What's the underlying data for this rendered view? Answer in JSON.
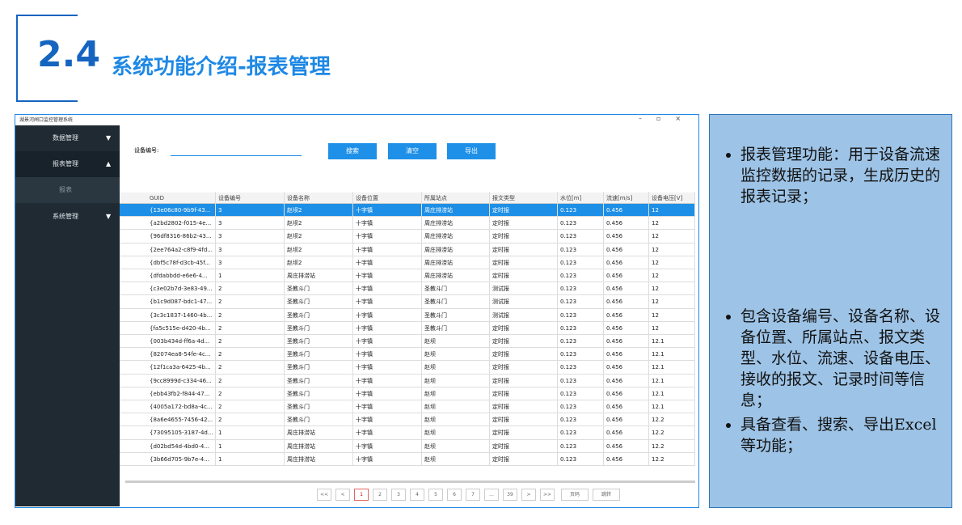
{
  "header": {
    "number": "2.4",
    "title": "系统功能介绍-报表管理"
  },
  "window": {
    "title": "湖景河闸口监控管理系统"
  },
  "sidebar": {
    "items": [
      "数据管理",
      "报表管理",
      "报表",
      "系统管理"
    ]
  },
  "search": {
    "label": "设备编号:",
    "buttons": [
      "搜索",
      "清空",
      "导出"
    ]
  },
  "table": {
    "columns": [
      "GUID",
      "设备编号",
      "设备名称",
      "设备位置",
      "所属站点",
      "报文类型",
      "水位[m]",
      "流速[m/s]",
      "设备电压[V]"
    ],
    "rows": [
      [
        "{13e06c80-9b9f-43...",
        "3",
        "赵坝2",
        "十字镇",
        "周庄排涝站",
        "定时报",
        "0.123",
        "0.456",
        "12"
      ],
      [
        "{a2bd2802-f015-4e...",
        "3",
        "赵坝2",
        "十字镇",
        "周庄排涝站",
        "定时报",
        "0.123",
        "0.456",
        "12"
      ],
      [
        "{96df8316-86b2-43...",
        "3",
        "赵坝2",
        "十字镇",
        "周庄排涝站",
        "定时报",
        "0.123",
        "0.456",
        "12"
      ],
      [
        "{2ee764a2-c8f9-4fd...",
        "3",
        "赵坝2",
        "十字镇",
        "周庄排涝站",
        "定时报",
        "0.123",
        "0.456",
        "12"
      ],
      [
        "{dbf5c78f-d3cb-45f...",
        "3",
        "赵坝2",
        "十字镇",
        "周庄排涝站",
        "定时报",
        "0.123",
        "0.456",
        "12"
      ],
      [
        "{dfdabbdd-e6e6-4...",
        "1",
        "周庄排涝站",
        "十字镇",
        "周庄排涝站",
        "定时报",
        "0.123",
        "0.456",
        "12"
      ],
      [
        "{c3e02b7d-3e83-49...",
        "2",
        "圣教斗门",
        "十字镇",
        "圣教斗门",
        "测试报",
        "0.123",
        "0.456",
        "12"
      ],
      [
        "{b1c9d087-bdc1-47...",
        "2",
        "圣教斗门",
        "十字镇",
        "圣教斗门",
        "测试报",
        "0.123",
        "0.456",
        "12"
      ],
      [
        "{3c3c1837-1460-4b...",
        "2",
        "圣教斗门",
        "十字镇",
        "圣教斗门",
        "测试报",
        "0.123",
        "0.456",
        "12"
      ],
      [
        "{fa5c515e-d420-4b...",
        "2",
        "圣教斗门",
        "十字镇",
        "圣教斗门",
        "定时报",
        "0.123",
        "0.456",
        "12"
      ],
      [
        "{003b434d-ff6a-4d...",
        "2",
        "圣教斗门",
        "十字镇",
        "赵坝",
        "定时报",
        "0.123",
        "0.456",
        "12.1"
      ],
      [
        "{82074ea8-54fe-4c...",
        "2",
        "圣教斗门",
        "十字镇",
        "赵坝",
        "定时报",
        "0.123",
        "0.456",
        "12.1"
      ],
      [
        "{12f1ca3a-6425-4b...",
        "2",
        "圣教斗门",
        "十字镇",
        "赵坝",
        "定时报",
        "0.123",
        "0.456",
        "12.1"
      ],
      [
        "{9cc8999d-c334-46...",
        "2",
        "圣教斗门",
        "十字镇",
        "赵坝",
        "定时报",
        "0.123",
        "0.456",
        "12.1"
      ],
      [
        "{ebb43fb2-f844-47...",
        "2",
        "圣教斗门",
        "十字镇",
        "赵坝",
        "定时报",
        "0.123",
        "0.456",
        "12.1"
      ],
      [
        "{4005a172-bd8a-4c...",
        "2",
        "圣教斗门",
        "十字镇",
        "赵坝",
        "定时报",
        "0.123",
        "0.456",
        "12.1"
      ],
      [
        "{8a6e4655-7456-42...",
        "2",
        "圣教斗门",
        "十字镇",
        "赵坝",
        "定时报",
        "0.123",
        "0.456",
        "12.2"
      ],
      [
        "{73095105-3187-4d...",
        "1",
        "周庄排涝站",
        "十字镇",
        "赵坝",
        "定时报",
        "0.123",
        "0.456",
        "12.2"
      ],
      [
        "{d02bd54d-4bd0-4...",
        "1",
        "周庄排涝站",
        "十字镇",
        "赵坝",
        "定时报",
        "0.123",
        "0.456",
        "12.2"
      ],
      [
        "{3b66d705-9b7e-4...",
        "1",
        "周庄排涝站",
        "十字镇",
        "赵坝",
        "定时报",
        "0.123",
        "0.456",
        "12.2"
      ]
    ]
  },
  "pagination": [
    "<<",
    "<",
    "1",
    "2",
    "3",
    "4",
    "5",
    "6",
    "7",
    "...",
    "39",
    ">",
    ">>",
    "页码",
    "跳转"
  ],
  "notes": [
    "报表管理功能：用于设备流速监控数据的记录，生成历史的报表记录；",
    "包含设备编号、设备名称、设备位置、所属站点、报文类型、水位、流速、设备电压、接收的报文、记录时间等信息；",
    "具备查看、搜索、导出Excel等功能；"
  ]
}
